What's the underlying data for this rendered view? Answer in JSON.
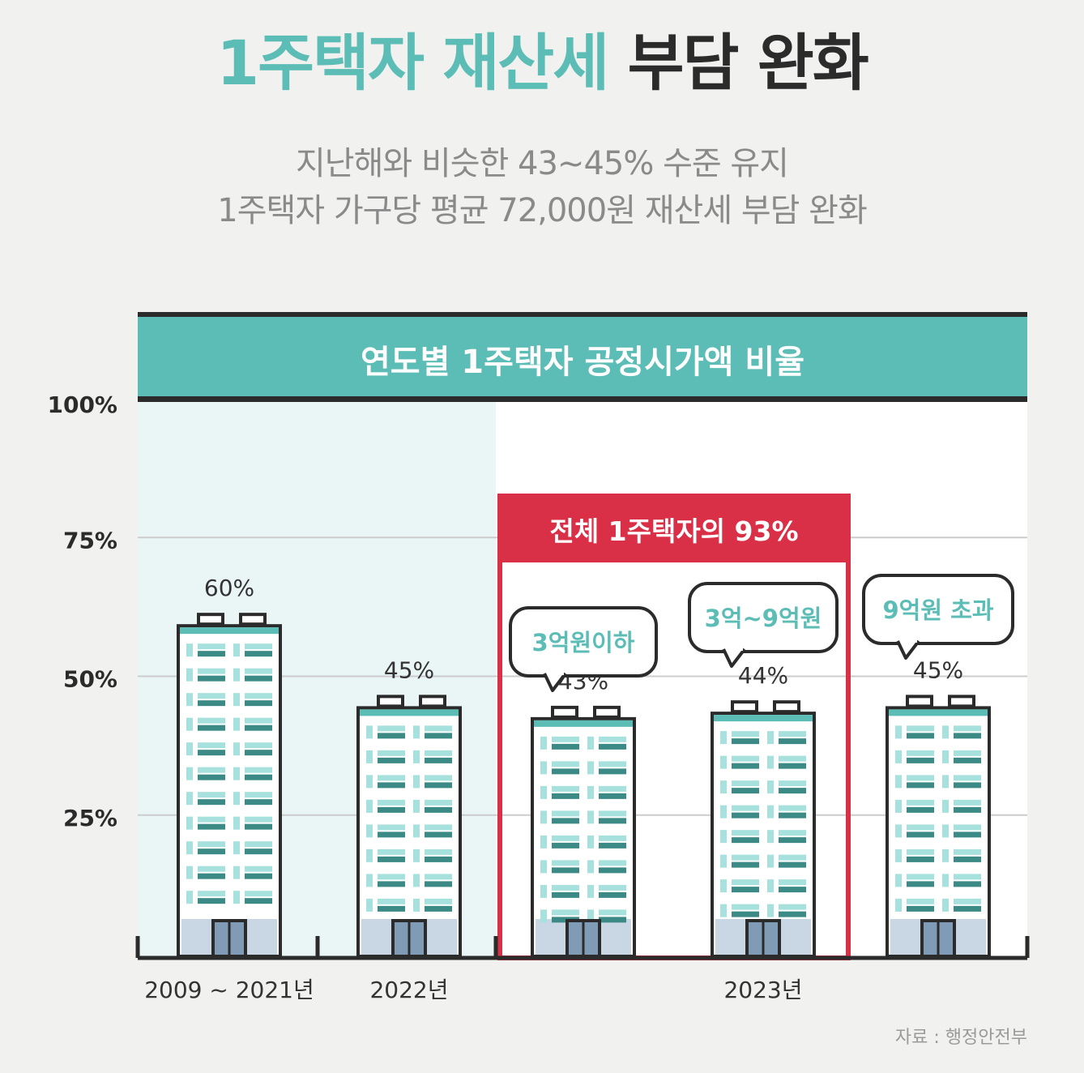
{
  "title": {
    "accent": "1주택자 재산세",
    "rest": "부담 완화"
  },
  "subtitle": {
    "line1": "지난해와 비슷한 43~45% 수준 유지",
    "line2": "1주택자 가구당 평균 72,000원 재산세 부담 완화"
  },
  "colors": {
    "accent": "#5bbdb5",
    "dark": "#2b2b2b",
    "highlight": "#d93048",
    "shade": "#eaf6f5"
  },
  "chart_data": {
    "type": "bar",
    "title": "연도별 1주택자 공정시가액 비율",
    "ylim": [
      0,
      100
    ],
    "yticks": [
      "25%",
      "50%",
      "75%",
      "100%"
    ],
    "grid": true,
    "categories": [
      "2009 ~ 2021년",
      "2022년",
      "3억원이하",
      "3억~9억원",
      "9억원 초과"
    ],
    "values": [
      60,
      45,
      43,
      44,
      45
    ],
    "value_labels": [
      "60%",
      "45%",
      "43%",
      "44%",
      "45%"
    ],
    "x_group_labels": [
      "2009 ~ 2021년",
      "2022년",
      "2023년"
    ],
    "highlight_label": "전체 1주택자의 93%",
    "bar_style": "apartment-building-icon"
  },
  "source": "자료 : 행정안전부"
}
